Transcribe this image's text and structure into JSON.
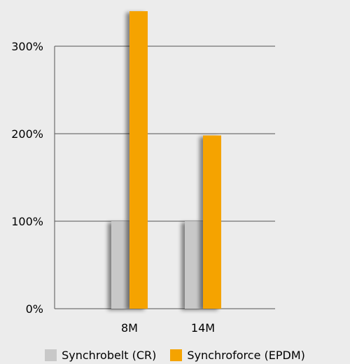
{
  "chart_data": {
    "type": "bar",
    "categories": [
      "8M",
      "14M"
    ],
    "series": [
      {
        "name": "Synchrobelt (CR)",
        "values": [
          100,
          100
        ],
        "color": "#c8c8c8"
      },
      {
        "name": "Synchroforce (EPDM)",
        "values": [
          340,
          198
        ],
        "color": "#f5a300"
      }
    ],
    "ylim": [
      0,
      300
    ],
    "yticks": [
      0,
      100,
      200,
      300
    ],
    "ytick_labels": [
      "0%",
      "100%",
      "200%",
      "300%"
    ],
    "axis_break": "8M Synchroforce (EPDM) bar extends beyond 300%",
    "grid": true,
    "legend_position": "bottom"
  }
}
